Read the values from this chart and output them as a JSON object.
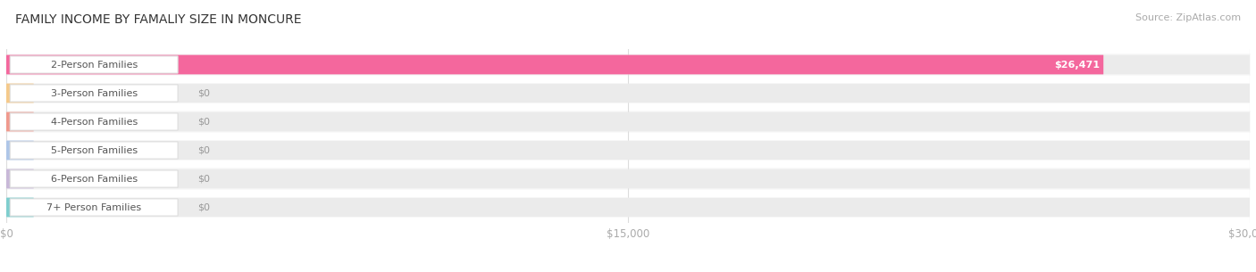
{
  "title": "FAMILY INCOME BY FAMALIY SIZE IN MONCURE",
  "source": "Source: ZipAtlas.com",
  "categories": [
    "2-Person Families",
    "3-Person Families",
    "4-Person Families",
    "5-Person Families",
    "6-Person Families",
    "7+ Person Families"
  ],
  "values": [
    26471,
    0,
    0,
    0,
    0,
    0
  ],
  "bar_colors": [
    "#f4679d",
    "#f5c98a",
    "#f0998d",
    "#aec6e8",
    "#c8b8d8",
    "#7ecece"
  ],
  "value_labels": [
    "$26,471",
    "$0",
    "$0",
    "$0",
    "$0",
    "$0"
  ],
  "xlim": [
    0,
    30000
  ],
  "xticks": [
    0,
    15000,
    30000
  ],
  "xticklabels": [
    "$0",
    "$15,000",
    "$30,000"
  ],
  "background_color": "#ffffff",
  "bar_bg_color": "#ebebeb",
  "row_bg_even": "#f9f9f9",
  "row_bg_odd": "#ffffff",
  "title_fontsize": 10,
  "source_fontsize": 8,
  "label_fontsize": 8,
  "value_fontsize": 8
}
